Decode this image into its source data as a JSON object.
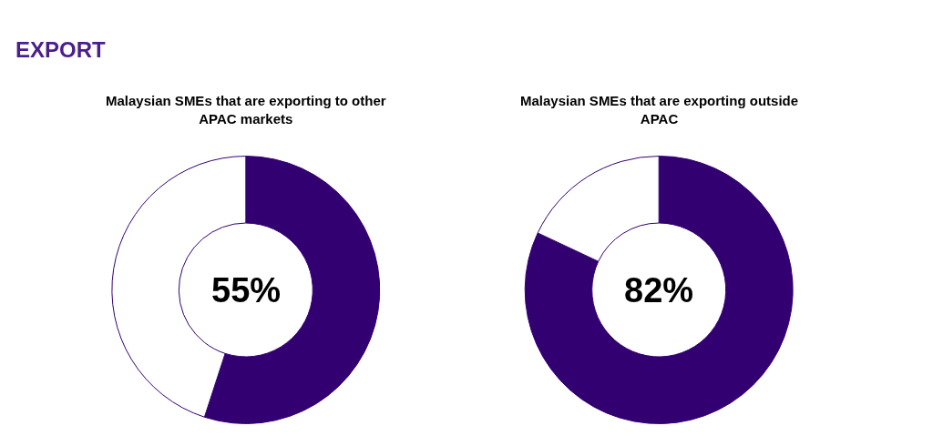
{
  "chart_data": [
    {
      "type": "donut",
      "title": "Malaysian SMEs that are exporting to other APAC markets",
      "annotations": [
        "EXPORT"
      ],
      "categories": [
        null,
        null
      ],
      "values": [
        55,
        45
      ],
      "colors": [
        "#330072",
        "#ffffff"
      ],
      "value_labels": [
        "55%",
        null
      ],
      "legend": false
    },
    {
      "type": "donut",
      "title": "Malaysian SMEs that are exporting outside APAC",
      "categories": [
        null,
        null
      ],
      "values": [
        82,
        18
      ],
      "colors": [
        "#330072",
        "#ffffff"
      ],
      "value_labels": [
        "82%",
        null
      ],
      "legend": false
    }
  ]
}
